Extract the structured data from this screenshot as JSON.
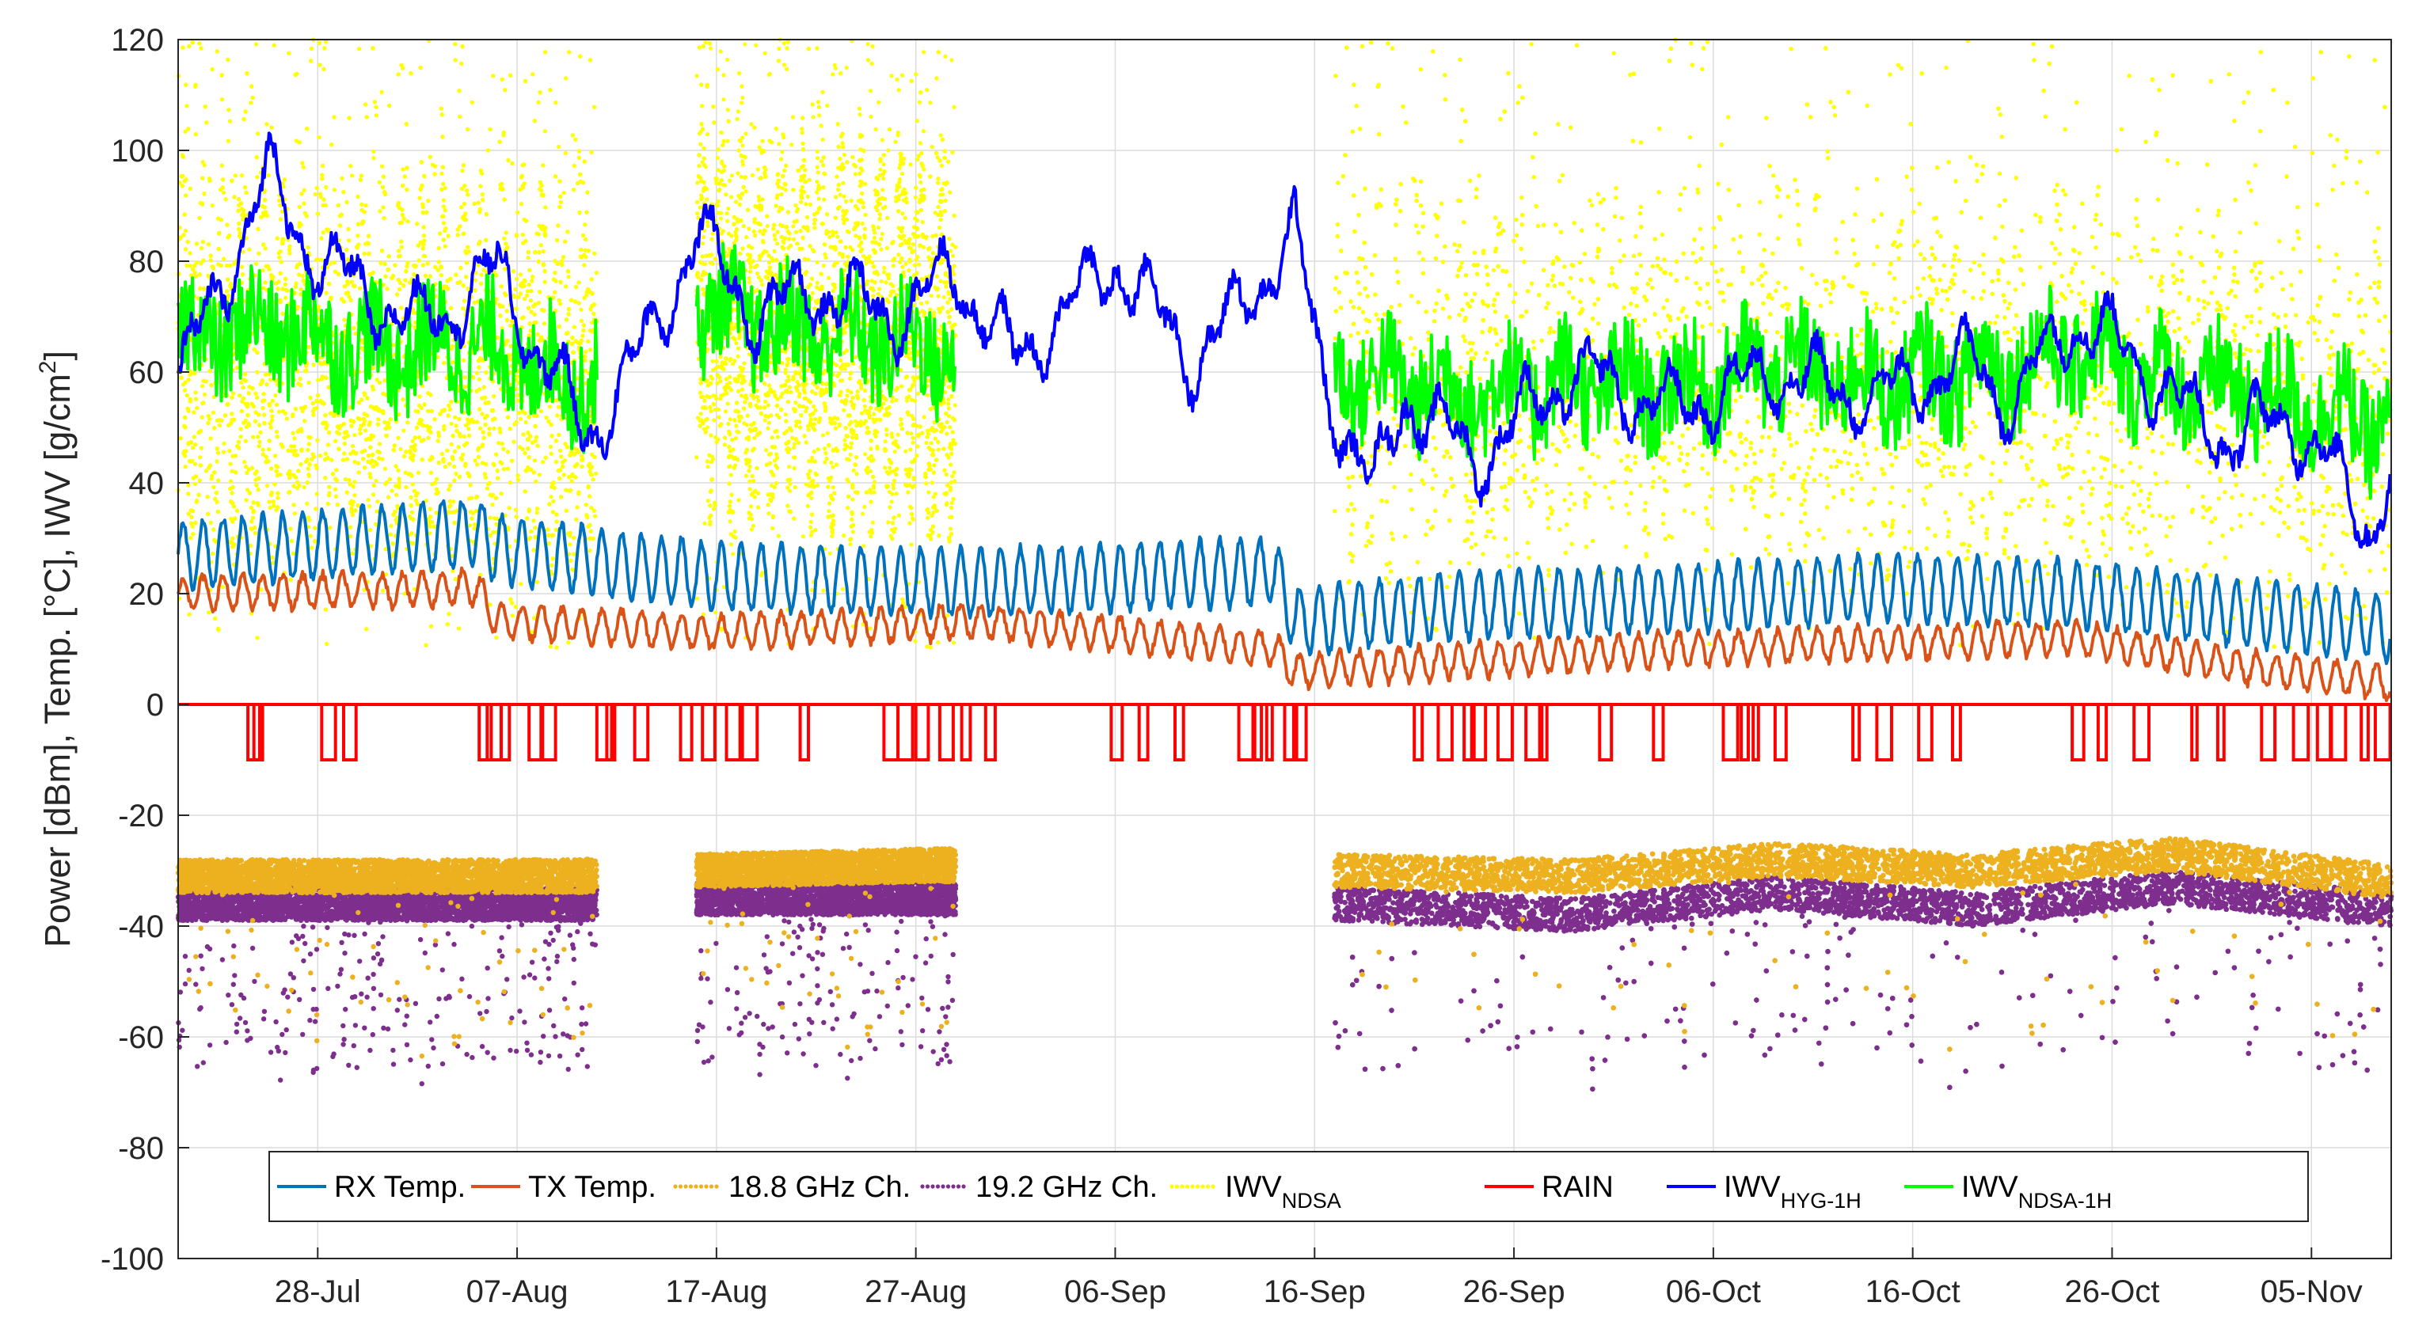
{
  "chart_data": {
    "type": "line",
    "title": "",
    "xlabel": "",
    "ylabel_parts": {
      "main": "Power [dBm], Temp. [°C], IWV [g/cm",
      "sup": "2",
      "end": "]"
    },
    "ylim": [
      -100,
      120
    ],
    "xlim_days": [
      0,
      111
    ],
    "yticks": [
      -100,
      -80,
      -60,
      -40,
      -20,
      0,
      20,
      40,
      60,
      80,
      100,
      120
    ],
    "xtick_labels": [
      "28-Jul",
      "07-Aug",
      "17-Aug",
      "27-Aug",
      "06-Sep",
      "16-Sep",
      "26-Sep",
      "06-Oct",
      "16-Oct",
      "26-Oct",
      "05-Nov"
    ],
    "xtick_days": [
      7,
      17,
      27,
      37,
      47,
      57,
      67,
      77,
      87,
      97,
      107
    ],
    "grid": true,
    "legend_position": "bottom",
    "series": [
      {
        "name": "RX Temp.",
        "base": "RX Temp.",
        "sub": "",
        "color": "#0072BD",
        "style": "line",
        "segments": [
          [
            0,
            111
          ]
        ],
        "key_days": [
          0,
          15,
          16,
          27,
          40,
          55,
          56,
          65,
          75,
          85,
          95,
          105,
          111
        ],
        "key_values": [
          27,
          31,
          28,
          23,
          22,
          24,
          15,
          18,
          19,
          21,
          20,
          16,
          14
        ]
      },
      {
        "name": "TX Temp.",
        "base": "TX Temp.",
        "sub": "",
        "color": "#D95319",
        "style": "line",
        "segments": [
          [
            0,
            111
          ]
        ],
        "key_days": [
          0,
          15,
          16,
          27,
          40,
          55,
          56,
          65,
          75,
          85,
          95,
          105,
          111
        ],
        "key_values": [
          20,
          21,
          15,
          13,
          15,
          10,
          6,
          8,
          10,
          11,
          12,
          6,
          4
        ]
      },
      {
        "name": "18.8 GHz Ch.",
        "base": "18.8 GHz Ch.",
        "sub": "",
        "color": "#EDB120",
        "style": "dots",
        "segments": [
          [
            0,
            21
          ],
          [
            26,
            39
          ],
          [
            58,
            111
          ]
        ],
        "key_days": [
          0,
          20,
          26,
          38,
          58,
          70,
          80,
          90,
          100,
          111
        ],
        "key_values": [
          -31,
          -31,
          -30,
          -29,
          -30,
          -31,
          -28,
          -30,
          -27,
          -32
        ]
      },
      {
        "name": "19.2 GHz Ch.",
        "base": "19.2 GHz Ch.",
        "sub": "",
        "color": "#7E2F8E",
        "style": "dots",
        "segments": [
          [
            0,
            21
          ],
          [
            26,
            39
          ],
          [
            58,
            111
          ]
        ],
        "key_days": [
          0,
          20,
          26,
          38,
          58,
          70,
          80,
          90,
          100,
          111
        ],
        "key_values": [
          -36,
          -36,
          -35,
          -35,
          -36,
          -38,
          -34,
          -37,
          -33,
          -37
        ]
      },
      {
        "name": "IWV_NDSA",
        "base": "IWV",
        "sub": "NDSA",
        "color": "#FFFF00",
        "style": "dots",
        "segments": [
          [
            0,
            21
          ],
          [
            26,
            39
          ],
          [
            58,
            111
          ]
        ],
        "key_days": [
          0,
          20,
          26,
          38,
          58,
          70,
          80,
          90,
          100,
          111
        ],
        "key_values": [
          62,
          60,
          68,
          66,
          58,
          60,
          58,
          60,
          56,
          52
        ]
      },
      {
        "name": "RAIN",
        "base": "RAIN",
        "sub": "",
        "color": "#FF0000",
        "style": "rain",
        "segments": [
          [
            0,
            111
          ]
        ],
        "rain_value": -10,
        "rain_days": [
          3.5,
          3.8,
          7.2,
          8.3,
          15.1,
          15.5,
          16.2,
          17.6,
          18.2,
          21.0,
          21.5,
          22.9,
          25.2,
          26.3,
          27.5,
          28.3,
          31.2,
          35.4,
          36.1,
          37.0,
          38.2,
          39.3,
          40.5,
          46.8,
          48.2,
          50.0,
          53.2,
          54.0,
          54.6,
          55.5,
          56.1,
          62.0,
          63.2,
          64.5,
          65.0,
          66.2,
          67.6,
          68.4,
          71.3,
          74.0,
          77.5,
          78.4,
          79.0,
          80.1,
          84.0,
          85.2,
          87.3,
          89.0,
          95.0,
          96.3,
          98.1,
          101.0,
          102.3,
          104.5,
          106.1,
          107.3,
          108.0,
          109.5,
          110.2
        ]
      },
      {
        "name": "IWV_HYG-1H",
        "base": "IWV",
        "sub": "HYG-1H",
        "color": "#0000FF",
        "style": "line",
        "segments": [
          [
            0,
            111
          ]
        ],
        "key_days": [
          0,
          4.5,
          7,
          12,
          16,
          20.5,
          23.5,
          26,
          29,
          32,
          36,
          39,
          42,
          47,
          51,
          53,
          56,
          57.5,
          60,
          61.5,
          65,
          70,
          75,
          80,
          85,
          90,
          92,
          95,
          98,
          101,
          103,
          106,
          110,
          111
        ],
        "key_values": [
          58,
          95,
          80,
          68,
          78,
          48,
          65,
          85,
          70,
          75,
          70,
          78,
          62,
          80,
          62,
          70,
          85,
          58,
          38,
          56,
          44,
          60,
          53,
          60,
          55,
          62,
          54,
          70,
          63,
          52,
          48,
          52,
          32,
          42
        ]
      },
      {
        "name": "IWV_NDSA-1H",
        "base": "IWV",
        "sub": "NDSA-1H",
        "color": "#00FF00",
        "style": "line",
        "segments": [
          [
            0,
            21
          ],
          [
            26,
            39
          ],
          [
            58,
            111
          ]
        ],
        "key_days": [
          0,
          5,
          10,
          15,
          20,
          26,
          30,
          35,
          38,
          58,
          65,
          70,
          75,
          80,
          85,
          90,
          95,
          100,
          105,
          111
        ],
        "key_values": [
          66,
          68,
          64,
          65,
          58,
          72,
          68,
          66,
          64,
          60,
          56,
          58,
          57,
          61,
          58,
          60,
          64,
          58,
          56,
          50
        ]
      }
    ]
  }
}
